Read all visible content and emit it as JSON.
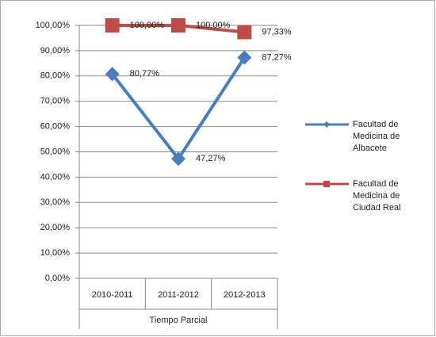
{
  "chart_data": {
    "type": "line",
    "x_label": "Tiempo Parcial",
    "categories": [
      "2010-2011",
      "2011-2012",
      "2012-2013"
    ],
    "series": [
      {
        "name": "Facultad de Medicina de Albacete",
        "color": "#4a7ebb",
        "marker": "diamond",
        "values": [
          80.77,
          47.27,
          87.27
        ],
        "value_labels": [
          "80,77%",
          "47,27%",
          "87,27%"
        ]
      },
      {
        "name": "Facultad de Medicina de Ciudad Real",
        "color": "#be4b48",
        "marker": "square",
        "values": [
          100,
          100,
          97.33
        ],
        "value_labels": [
          "100,00%",
          "100,00%",
          "97,33%"
        ]
      }
    ],
    "ylim": [
      0,
      100
    ],
    "yticks": [
      {
        "value": 0,
        "label": "0,00%"
      },
      {
        "value": 10,
        "label": "10,00%"
      },
      {
        "value": 20,
        "label": "20,00%"
      },
      {
        "value": 30,
        "label": "30,00%"
      },
      {
        "value": 40,
        "label": "40,00%"
      },
      {
        "value": 50,
        "label": "50,00%"
      },
      {
        "value": 60,
        "label": "60,00%"
      },
      {
        "value": 70,
        "label": "70,00%"
      },
      {
        "value": 80,
        "label": "80,00%"
      },
      {
        "value": 90,
        "label": "90,00%"
      },
      {
        "value": 100,
        "label": "100,00%"
      }
    ],
    "grid": true,
    "legend": "right"
  }
}
